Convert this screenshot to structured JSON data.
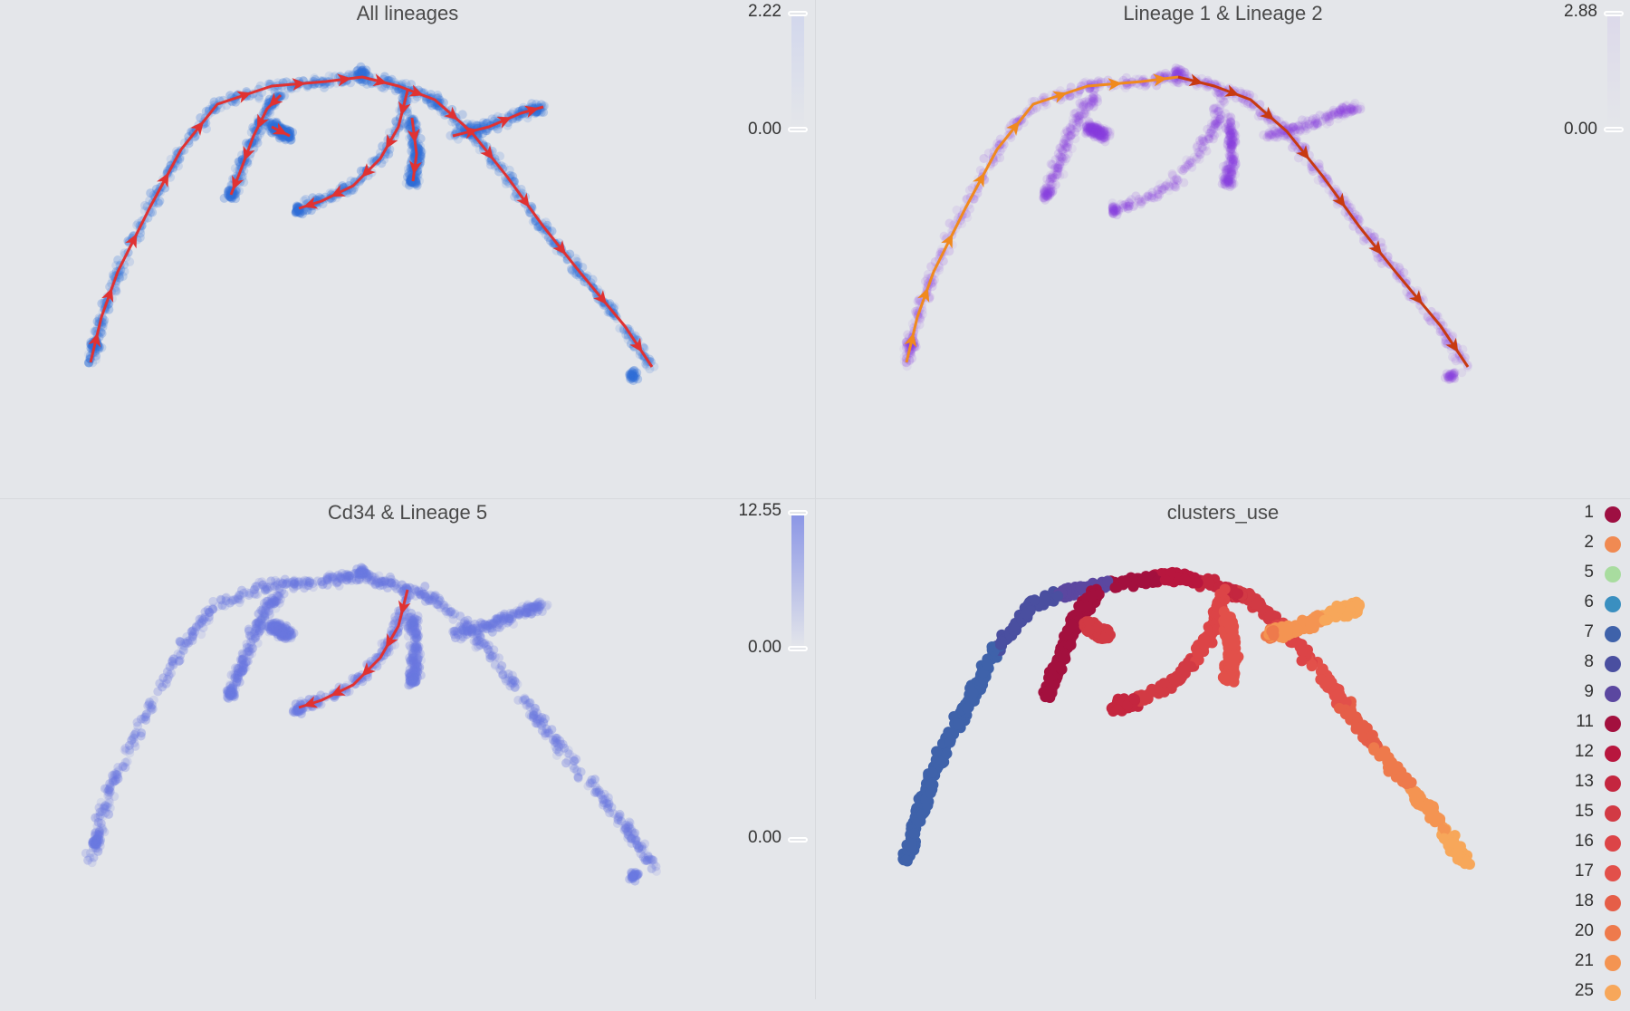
{
  "panels": [
    {
      "title": "All lineages",
      "point_color": "#2f6fd8",
      "colorbar": {
        "max_label": "2.22",
        "min_label": "0.00",
        "color_top": "#d2d7ec",
        "color_bottom": "#e4e6ea"
      },
      "curve_color": "#e03232"
    },
    {
      "title": "Lineage 1 & Lineage 2",
      "point_color": "#8a3fe0",
      "colorbar": {
        "max_label": "2.88",
        "min_label": "0.00",
        "color_top": "#dcd9ea",
        "color_bottom": "#e4e6ea"
      },
      "lineage1_color": "#f08a1e",
      "lineage2_color": "#c83a10"
    },
    {
      "title": "Cd34 & Lineage 5",
      "point_color": "#6b78e0",
      "colorbar": {
        "max_label": "12.55",
        "min_label": "0.00",
        "color_top": "#8a95e6",
        "color_bottom": "#e4e6ea"
      },
      "second_min_label": "0.00",
      "curve_color": "#e03232"
    },
    {
      "title": "clusters_use"
    }
  ],
  "legend": {
    "items": [
      {
        "label": "1",
        "color": "#9e0f42"
      },
      {
        "label": "2",
        "color": "#f08a52"
      },
      {
        "label": "5",
        "color": "#a8dc9f"
      },
      {
        "label": "6",
        "color": "#3a8fc0"
      },
      {
        "label": "7",
        "color": "#3f62aa"
      },
      {
        "label": "8",
        "color": "#4a4fa0"
      },
      {
        "label": "9",
        "color": "#5b47a0"
      },
      {
        "label": "11",
        "color": "#a3103e"
      },
      {
        "label": "12",
        "color": "#b8163e"
      },
      {
        "label": "13",
        "color": "#c4263f"
      },
      {
        "label": "15",
        "color": "#d23a44"
      },
      {
        "label": "16",
        "color": "#dc4447"
      },
      {
        "label": "17",
        "color": "#e2504a"
      },
      {
        "label": "18",
        "color": "#e55e48"
      },
      {
        "label": "20",
        "color": "#ee7a4c"
      },
      {
        "label": "21",
        "color": "#f49452"
      },
      {
        "label": "25",
        "color": "#f7a75a"
      }
    ]
  },
  "chart_data": [
    {
      "type": "scatter",
      "title": "All lineages",
      "colorbar_range": [
        0.0,
        2.22
      ],
      "lineages_shown": "all"
    },
    {
      "type": "scatter",
      "title": "Lineage 1 & Lineage 2",
      "colorbar_range": [
        0.0,
        2.88
      ],
      "lineages_shown": [
        "Lineage 1",
        "Lineage 2"
      ]
    },
    {
      "type": "scatter",
      "title": "Cd34 & Lineage 5",
      "colorbar_range": [
        0.0,
        12.55
      ],
      "lineages_shown": [
        "Lineage 5"
      ]
    },
    {
      "type": "scatter",
      "title": "clusters_use",
      "legend": "right",
      "categories": [
        "1",
        "2",
        "5",
        "6",
        "7",
        "8",
        "9",
        "11",
        "12",
        "13",
        "15",
        "16",
        "17",
        "18",
        "20",
        "21",
        "25"
      ]
    }
  ]
}
